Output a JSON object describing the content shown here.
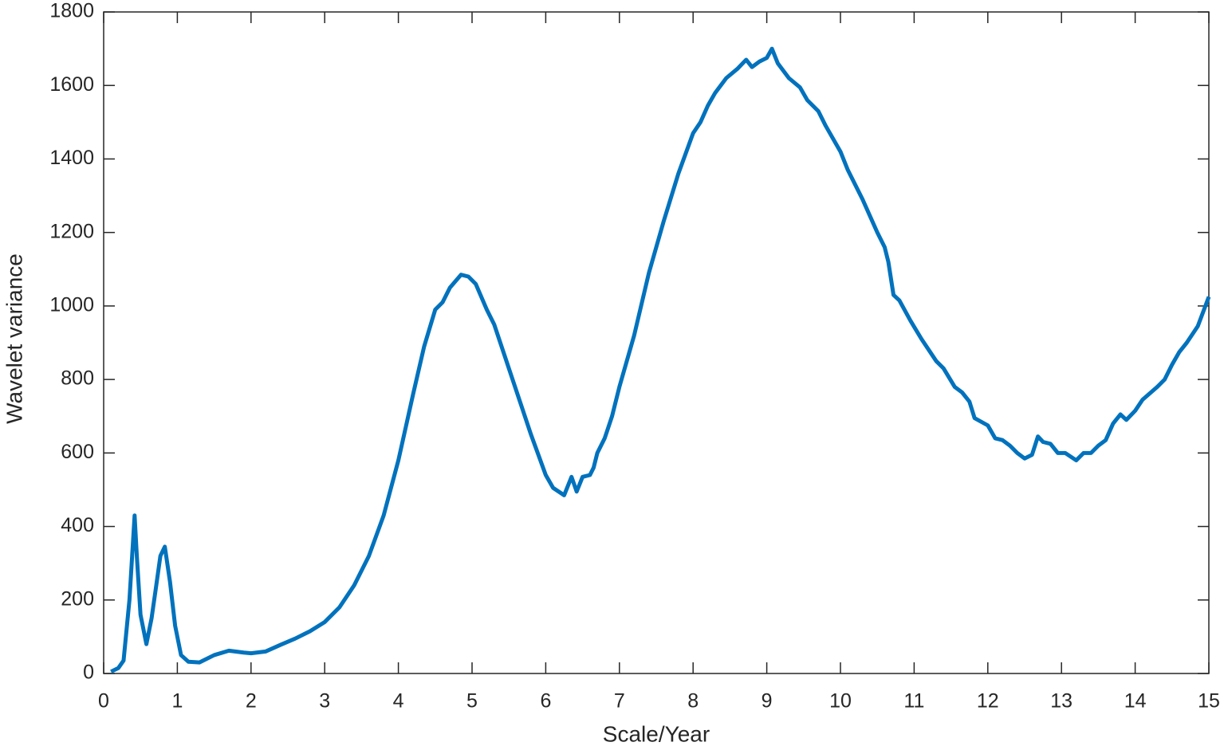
{
  "chart_data": {
    "type": "line",
    "xlabel": "Scale/Year",
    "ylabel": "Wavelet variance",
    "xlim": [
      0,
      15
    ],
    "ylim": [
      0,
      1800
    ],
    "xticks": [
      0,
      1,
      2,
      3,
      4,
      5,
      6,
      7,
      8,
      9,
      10,
      11,
      12,
      13,
      14,
      15
    ],
    "yticks": [
      0,
      200,
      400,
      600,
      800,
      1000,
      1200,
      1400,
      1600,
      1800
    ],
    "grid": false,
    "series": [
      {
        "color": "#0072bd",
        "x": [
          0.1,
          0.2,
          0.27,
          0.35,
          0.42,
          0.45,
          0.5,
          0.58,
          0.65,
          0.7,
          0.77,
          0.83,
          0.9,
          0.97,
          1.05,
          1.15,
          1.3,
          1.5,
          1.7,
          1.9,
          2.0,
          2.2,
          2.4,
          2.6,
          2.8,
          3.0,
          3.2,
          3.4,
          3.6,
          3.8,
          4.0,
          4.2,
          4.35,
          4.5,
          4.6,
          4.7,
          4.85,
          4.95,
          5.05,
          5.2,
          5.3,
          5.5,
          5.65,
          5.8,
          6.0,
          6.1,
          6.25,
          6.35,
          6.42,
          6.5,
          6.6,
          6.65,
          6.7,
          6.8,
          6.9,
          7.0,
          7.2,
          7.4,
          7.6,
          7.8,
          8.0,
          8.1,
          8.2,
          8.3,
          8.45,
          8.6,
          8.72,
          8.8,
          8.9,
          9.0,
          9.07,
          9.15,
          9.3,
          9.45,
          9.55,
          9.7,
          9.8,
          10.0,
          10.1,
          10.3,
          10.5,
          10.6,
          10.65,
          10.72,
          10.8,
          10.95,
          11.1,
          11.3,
          11.4,
          11.55,
          11.65,
          11.75,
          11.82,
          12.0,
          12.1,
          12.2,
          12.3,
          12.4,
          12.5,
          12.6,
          12.68,
          12.75,
          12.85,
          12.95,
          13.05,
          13.2,
          13.3,
          13.4,
          13.5,
          13.6,
          13.7,
          13.8,
          13.88,
          14.0,
          14.1,
          14.3,
          14.4,
          14.5,
          14.6,
          14.7,
          14.85,
          15.0
        ],
        "values": [
          5,
          15,
          35,
          200,
          430,
          320,
          160,
          80,
          150,
          220,
          320,
          345,
          250,
          130,
          50,
          32,
          30,
          50,
          62,
          57,
          55,
          60,
          78,
          95,
          115,
          140,
          180,
          240,
          320,
          430,
          580,
          760,
          890,
          990,
          1010,
          1050,
          1085,
          1080,
          1060,
          990,
          950,
          830,
          740,
          650,
          540,
          505,
          485,
          535,
          495,
          535,
          540,
          560,
          600,
          640,
          700,
          780,
          920,
          1090,
          1230,
          1360,
          1470,
          1500,
          1545,
          1580,
          1620,
          1645,
          1670,
          1650,
          1665,
          1675,
          1700,
          1660,
          1620,
          1595,
          1560,
          1530,
          1490,
          1420,
          1370,
          1290,
          1200,
          1160,
          1120,
          1030,
          1015,
          960,
          910,
          850,
          830,
          780,
          765,
          740,
          695,
          675,
          640,
          635,
          620,
          600,
          585,
          595,
          645,
          630,
          625,
          600,
          600,
          580,
          600,
          600,
          620,
          635,
          680,
          705,
          690,
          715,
          745,
          780,
          800,
          840,
          875,
          900,
          945,
          1025
        ]
      }
    ]
  }
}
